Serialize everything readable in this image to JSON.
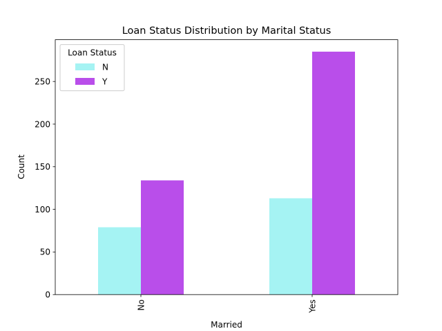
{
  "chart_data": {
    "type": "bar",
    "title": "Loan Status Distribution by Marital Status",
    "xlabel": "Married",
    "ylabel": "Count",
    "categories": [
      "No",
      "Yes"
    ],
    "series": [
      {
        "name": "N",
        "values": [
          79,
          113
        ],
        "color": "#a5f3f3"
      },
      {
        "name": "Y",
        "values": [
          134,
          285
        ],
        "color": "#b94eea"
      }
    ],
    "ylim": [
      0,
      299
    ],
    "yticks": [
      0,
      50,
      100,
      150,
      200,
      250
    ],
    "legend": {
      "title": "Loan Status",
      "placement": "top-left"
    },
    "grid": false
  }
}
